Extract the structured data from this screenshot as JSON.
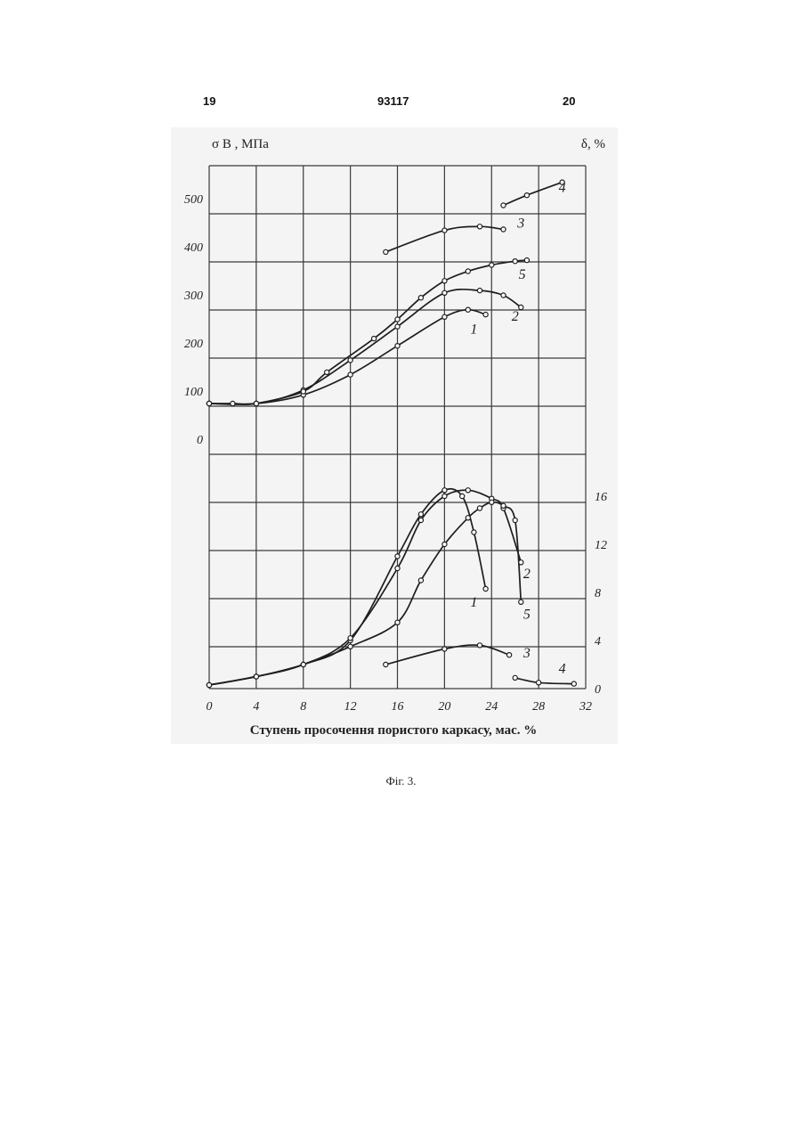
{
  "header": {
    "left": "19",
    "center": "93117",
    "right": "20"
  },
  "caption": "Фіг. 3.",
  "chart_data": {
    "type": "line",
    "xlabel": "Ступень просочення пористого каркасу, мас. %",
    "xlim": [
      0,
      32
    ],
    "xticks": [
      0,
      4,
      8,
      12,
      16,
      20,
      24,
      28,
      32
    ],
    "strength_axis": {
      "label": "σ В , МПа",
      "range": [
        -100,
        600
      ],
      "ticks": [
        0,
        100,
        200,
        300,
        400,
        500
      ]
    },
    "elongation_axis": {
      "label": "δ, %",
      "range": [
        0,
        20
      ],
      "ticks": [
        0,
        4,
        8,
        12,
        16
      ]
    },
    "grid": true,
    "strength_series": [
      {
        "name": "1",
        "points": [
          [
            0,
            100
          ],
          [
            4,
            100
          ],
          [
            8,
            118
          ],
          [
            12,
            160
          ],
          [
            16,
            220
          ],
          [
            20,
            280
          ],
          [
            22,
            295
          ],
          [
            23.5,
            285
          ]
        ],
        "label_at": [
          22.5,
          245
        ]
      },
      {
        "name": "2",
        "points": [
          [
            0,
            100
          ],
          [
            4,
            100
          ],
          [
            8,
            128
          ],
          [
            12,
            190
          ],
          [
            16,
            260
          ],
          [
            20,
            330
          ],
          [
            23,
            335
          ],
          [
            25,
            325
          ],
          [
            26.5,
            300
          ]
        ],
        "label_at": [
          26,
          272
        ]
      },
      {
        "name": "3",
        "points": [
          [
            15,
            415
          ],
          [
            20,
            460
          ],
          [
            23,
            468
          ],
          [
            25,
            462
          ]
        ],
        "label_at": [
          26.5,
          466
        ]
      },
      {
        "name": "4",
        "points": [
          [
            25,
            512
          ],
          [
            27,
            533
          ],
          [
            30,
            560
          ]
        ],
        "label_at": [
          30,
          540
        ]
      },
      {
        "name": "5",
        "points": [
          [
            0,
            100
          ],
          [
            2,
            100
          ],
          [
            4,
            100
          ],
          [
            8,
            125
          ],
          [
            10,
            165
          ],
          [
            14,
            235
          ],
          [
            16,
            275
          ],
          [
            18,
            320
          ],
          [
            20,
            355
          ],
          [
            22,
            375
          ],
          [
            24,
            388
          ],
          [
            26,
            396
          ],
          [
            27,
            398
          ]
        ],
        "label_at": [
          26.6,
          359
        ]
      }
    ],
    "elongation_series": [
      {
        "name": "1",
        "points": [
          [
            0,
            0.3
          ],
          [
            4,
            1
          ],
          [
            8,
            2
          ],
          [
            12,
            4
          ],
          [
            16,
            11
          ],
          [
            18,
            14.5
          ],
          [
            20,
            16.5
          ],
          [
            21.5,
            16
          ],
          [
            22.5,
            13
          ],
          [
            23.5,
            8.3
          ]
        ],
        "label_at": [
          22.5,
          6.8
        ]
      },
      {
        "name": "2",
        "points": [
          [
            0,
            0.3
          ],
          [
            4,
            1
          ],
          [
            8,
            2
          ],
          [
            12,
            4.2
          ],
          [
            16,
            10
          ],
          [
            18,
            14
          ],
          [
            20,
            16
          ],
          [
            22,
            16.5
          ],
          [
            24,
            15.8
          ],
          [
            25,
            15
          ],
          [
            26.5,
            10.5
          ]
        ],
        "label_at": [
          27,
          9.2
        ]
      },
      {
        "name": "3",
        "points": [
          [
            15,
            2
          ],
          [
            20,
            3.3
          ],
          [
            23,
            3.6
          ],
          [
            25.5,
            2.8
          ]
        ],
        "label_at": [
          27,
          2.6
        ]
      },
      {
        "name": "4",
        "points": [
          [
            26,
            0.9
          ],
          [
            28,
            0.5
          ],
          [
            31,
            0.4
          ]
        ],
        "label_at": [
          30,
          1.3
        ]
      },
      {
        "name": "5",
        "points": [
          [
            0,
            0.3
          ],
          [
            4,
            1
          ],
          [
            8,
            2
          ],
          [
            12,
            3.5
          ],
          [
            16,
            5.5
          ],
          [
            18,
            9
          ],
          [
            20,
            12
          ],
          [
            22,
            14.2
          ],
          [
            23,
            15
          ],
          [
            24,
            15.5
          ],
          [
            25,
            15.2
          ],
          [
            26,
            14
          ],
          [
            26.5,
            7.2
          ]
        ],
        "label_at": [
          27,
          5.8
        ]
      }
    ]
  }
}
